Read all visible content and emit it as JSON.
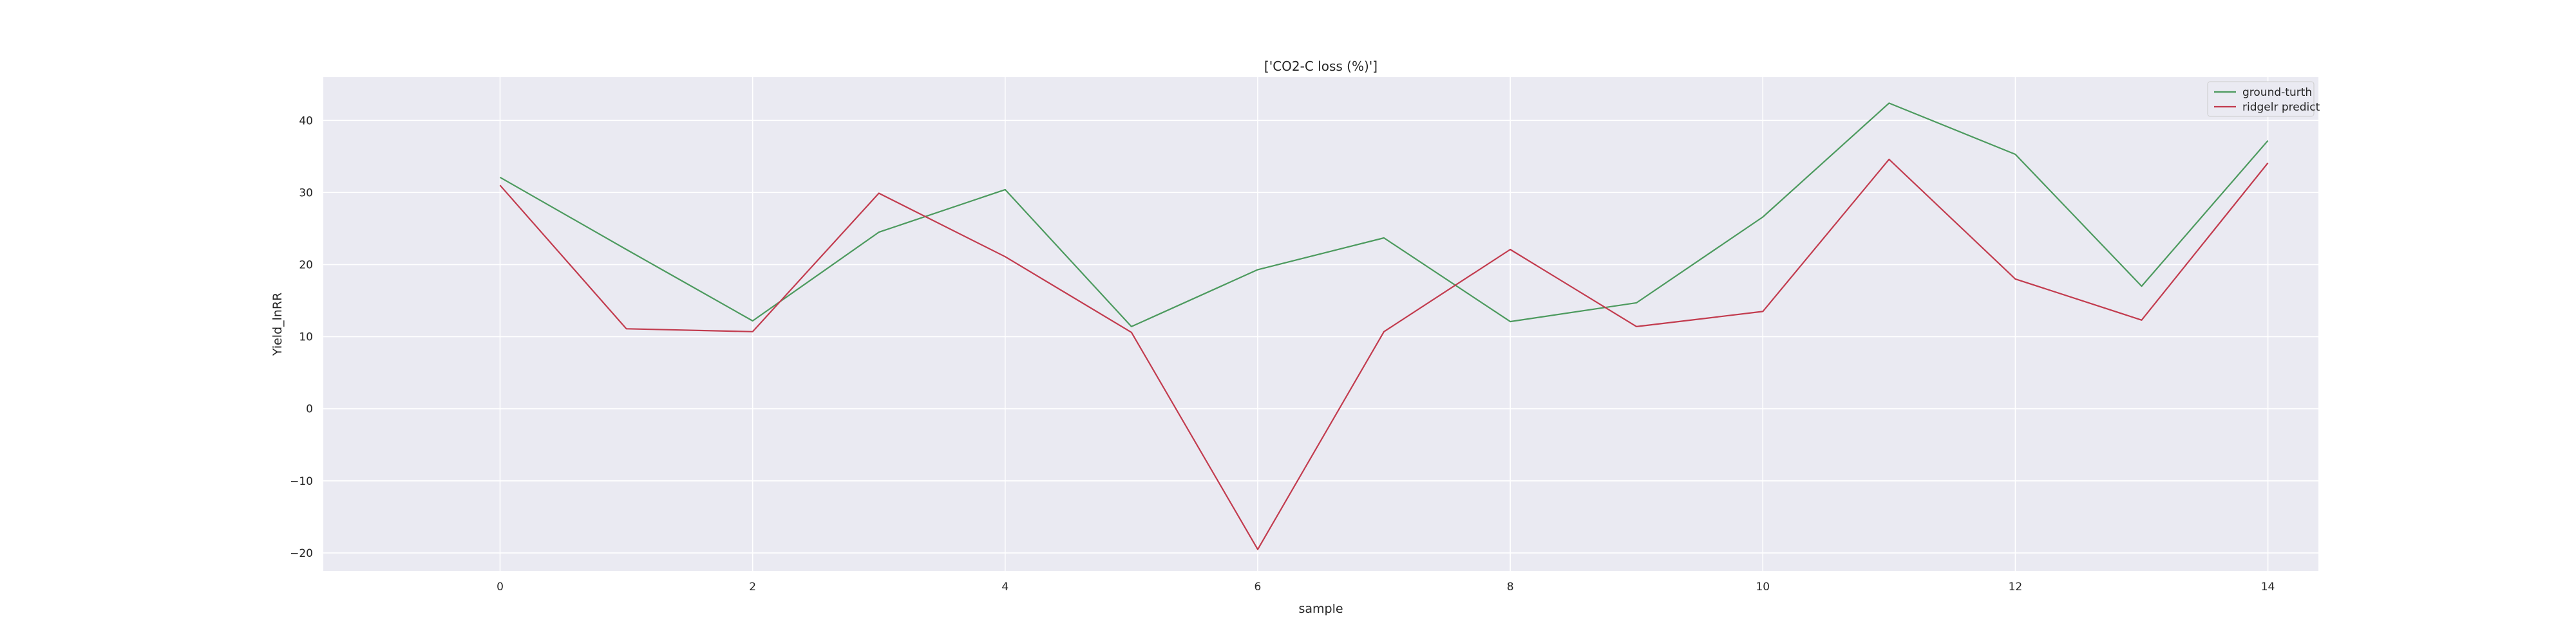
{
  "chart_data": {
    "type": "line",
    "title": "['CO2-C loss (%)']",
    "xlabel": "sample",
    "ylabel": "Yield_lnRR",
    "x": [
      0,
      1,
      2,
      3,
      4,
      5,
      6,
      7,
      8,
      9,
      10,
      11,
      12,
      13,
      14
    ],
    "xlim": [
      -1.4,
      14.4
    ],
    "ylim": [
      -22.5,
      46.0
    ],
    "xticks": [
      0,
      2,
      4,
      6,
      8,
      10,
      12,
      14
    ],
    "xtick_labels": [
      "0",
      "2",
      "4",
      "6",
      "8",
      "10",
      "12",
      "14"
    ],
    "yticks": [
      -20,
      -10,
      0,
      10,
      20,
      30,
      40
    ],
    "ytick_labels": [
      "−20",
      "−10",
      "0",
      "10",
      "20",
      "30",
      "40"
    ],
    "grid": true,
    "legend_position": "top-right",
    "background_color": "#eaeaf2",
    "grid_color": "#ffffff",
    "series": [
      {
        "name": "ground-turth",
        "color": "#4c9a5e",
        "values": [
          32.1,
          22.1,
          12.2,
          24.5,
          30.4,
          11.4,
          19.3,
          23.7,
          12.1,
          14.7,
          26.6,
          42.4,
          35.3,
          17.0,
          37.2
        ]
      },
      {
        "name": "ridgelr predict",
        "color": "#c23b4e",
        "values": [
          31.0,
          11.1,
          10.7,
          29.9,
          21.1,
          10.6,
          -19.5,
          10.7,
          22.1,
          11.4,
          13.5,
          34.6,
          18.0,
          12.3,
          34.1
        ]
      }
    ]
  }
}
